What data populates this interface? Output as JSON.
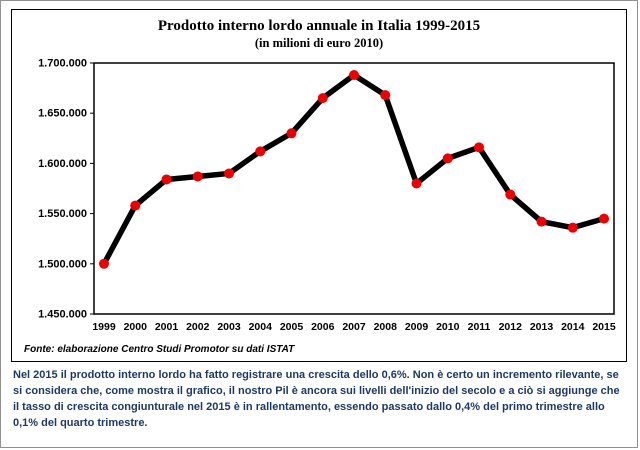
{
  "chart": {
    "title": "Prodotto interno lordo annuale in Italia 1999-2015",
    "subtitle": "(in milioni di euro 2010)",
    "source": "Fonte: elaborazione Centro Studi Promotor su dati ISTAT"
  },
  "commentary": {
    "text": "Nel 2015 il prodotto interno lordo ha fatto registrare una crescita dello 0,6%. Non è certo un incremento rilevante, se si considera che, come mostra il grafico, il nostro Pil è ancora sui livelli dell'inizio del secolo e a ciò si aggiunge che il tasso di crescita congiunturale nel 2015 è in rallentamento, essendo passato dallo 0,4% del primo trimestre allo 0,1% del quarto trimestre."
  },
  "chart_data": {
    "type": "line",
    "title": "Prodotto interno lordo annuale in Italia 1999-2015",
    "subtitle": "(in milioni di euro 2010)",
    "categories": [
      "1999",
      "2000",
      "2001",
      "2002",
      "2003",
      "2004",
      "2005",
      "2006",
      "2007",
      "2008",
      "2009",
      "2010",
      "2011",
      "2012",
      "2013",
      "2014",
      "2015"
    ],
    "values": [
      1500000,
      1558000,
      1584000,
      1587000,
      1590000,
      1612000,
      1630000,
      1665000,
      1688000,
      1668000,
      1580000,
      1605000,
      1616000,
      1569000,
      1542000,
      1536000,
      1545000
    ],
    "ylim": [
      1450000,
      1700000
    ],
    "ytick_step": 50000,
    "xlabel": "",
    "ylabel": "",
    "grid": false,
    "legend": "none",
    "line_color": "#000000",
    "marker_color": "#ee0000",
    "frame_color": "#000000"
  }
}
